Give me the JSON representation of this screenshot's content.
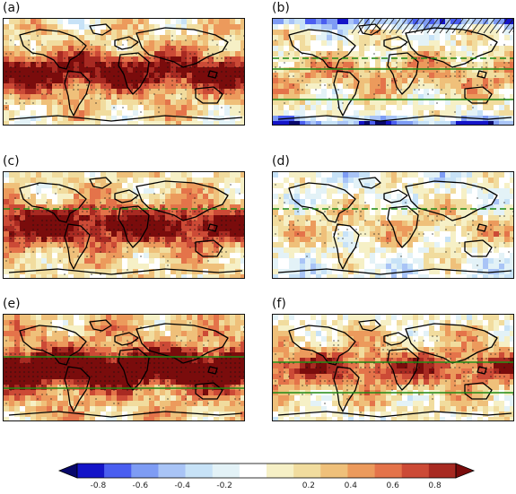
{
  "chart_data": {
    "type": "heatmap",
    "panels": [
      {
        "label": "(a)",
        "field": "strong warm bias across tropics and midlatitudes",
        "stippling": true,
        "hatching": false,
        "lines": []
      },
      {
        "label": "(b)",
        "field": "weak warm with cool high latitudes",
        "stippling": true,
        "hatching": true,
        "lines": [
          "dashed",
          "solid",
          "solid"
        ]
      },
      {
        "label": "(c)",
        "field": "strong warm bias across tropics",
        "stippling": true,
        "hatching": false,
        "lines": [
          "dashed"
        ]
      },
      {
        "label": "(d)",
        "field": "weak anomalies mostly near zero",
        "stippling": true,
        "hatching": false,
        "lines": [
          "dashed"
        ]
      },
      {
        "label": "(e)",
        "field": "strongest warm band within tropics",
        "stippling": true,
        "hatching": false,
        "lines": [
          "solid",
          "solid"
        ]
      },
      {
        "label": "(f)",
        "field": "moderate warm anomalies",
        "stippling": true,
        "hatching": false,
        "lines": [
          "solid",
          "solid"
        ]
      }
    ],
    "colorbar": {
      "ticks": [
        "-0.8",
        "-0.6",
        "-0.4",
        "-0.2",
        "0.2",
        "0.4",
        "0.6",
        "0.8"
      ],
      "range": [
        -0.9,
        0.9
      ],
      "colors": [
        "#08086b",
        "#1414c8",
        "#4a5ef0",
        "#7e9cf4",
        "#a9c4f6",
        "#c7e2f7",
        "#e3f2f7",
        "#ffffff",
        "#f6f0c6",
        "#f1dc9e",
        "#efc07a",
        "#ec9a5c",
        "#e4734a",
        "#cc4a36",
        "#a82a22",
        "#7a0c0c"
      ]
    }
  }
}
